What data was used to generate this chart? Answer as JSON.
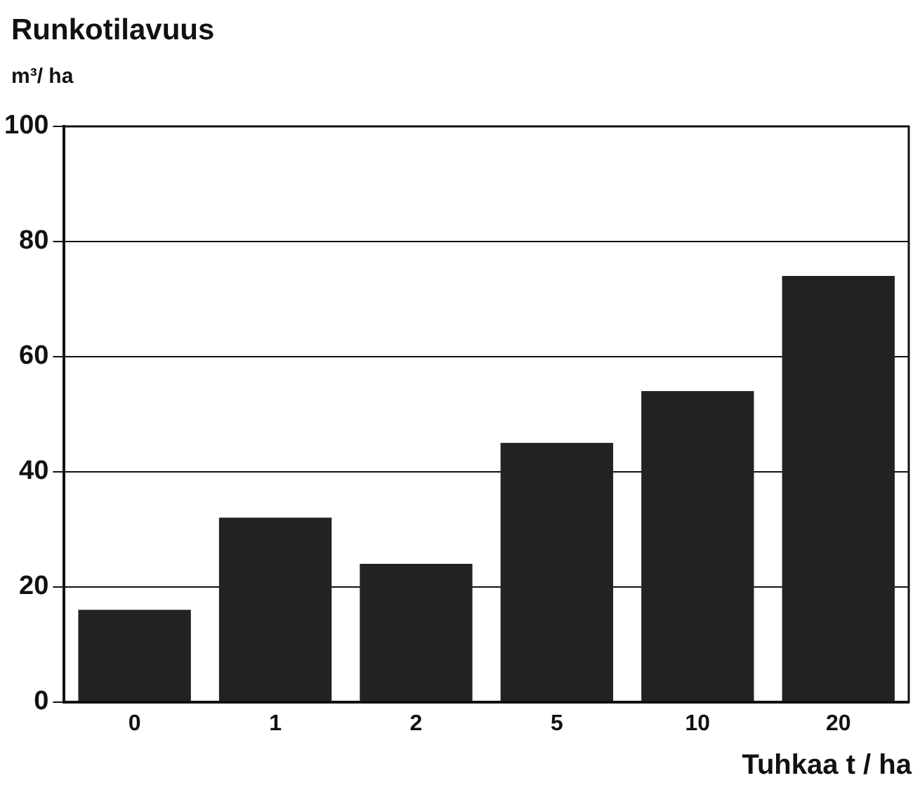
{
  "chart_data": {
    "type": "bar",
    "title": "Runkotilavuus",
    "ylabel": "m³/ ha",
    "xlabel": "Tuhkaa t / ha",
    "categories": [
      "0",
      "1",
      "2",
      "5",
      "10",
      "20"
    ],
    "values": [
      16,
      32,
      24,
      45,
      54,
      74
    ],
    "color": "#222222",
    "ylim": [
      0,
      100
    ],
    "yticks": [
      0,
      20,
      40,
      60,
      80,
      100
    ],
    "grid": "y",
    "legend": false
  }
}
